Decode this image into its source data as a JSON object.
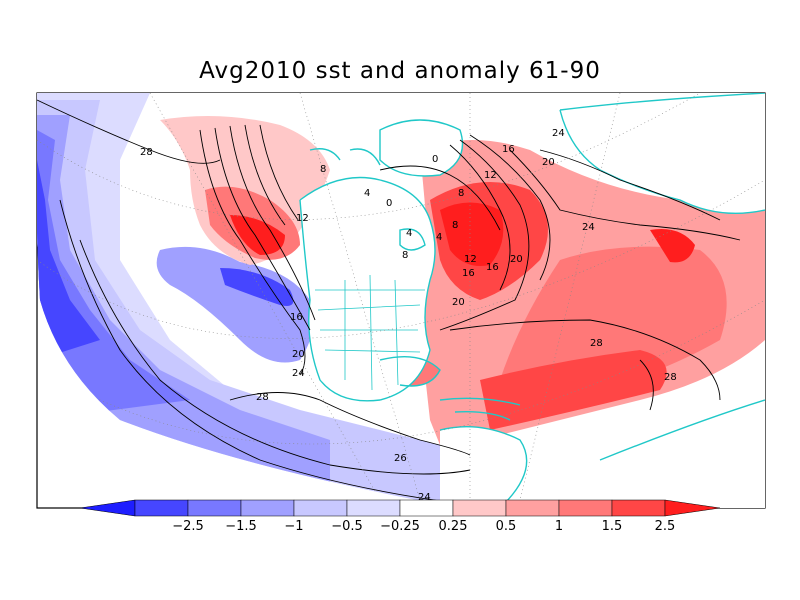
{
  "title": "Avg2010 sst and anomaly 61-90",
  "colorbar": {
    "labels": [
      "-2.5",
      "-1.5",
      "-1",
      "-0.5",
      "-0.25",
      "0.25",
      "0.5",
      "1",
      "1.5",
      "2.5"
    ],
    "colors": [
      "#1e1eff",
      "#4646ff",
      "#7878ff",
      "#a0a0ff",
      "#c8c8ff",
      "#dcdcff",
      "#ffffff",
      "#ffc8c8",
      "#ffa0a0",
      "#ff7878",
      "#ff4646",
      "#ff1e1e"
    ]
  },
  "contour_labels": [
    "28",
    "8",
    "12",
    "16",
    "20",
    "24",
    "28",
    "26",
    "24",
    "4",
    "8",
    "12",
    "16",
    "20",
    "0",
    "8",
    "4",
    "0",
    "8",
    "4",
    "16",
    "12",
    "16",
    "20",
    "24",
    "28",
    "28",
    "20",
    "24"
  ],
  "map": {
    "land_color": "#ffffff",
    "coast_color": "#20c8c8",
    "contour_color": "#000000"
  }
}
